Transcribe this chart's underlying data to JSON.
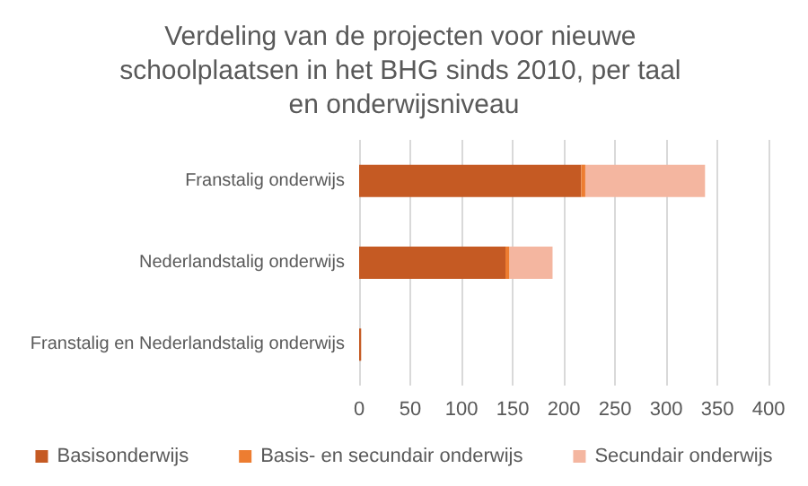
{
  "chart_data": {
    "type": "bar",
    "orientation": "horizontal",
    "stacked": true,
    "title": "Verdeling van de projecten voor nieuwe schoolplaatsen in het BHG sinds 2010, per taal en onderwijsniveau",
    "categories": [
      "Franstalig onderwijs",
      "Nederlandstalig onderwijs",
      "Franstalig en Nederlandstalig onderwijs"
    ],
    "series": [
      {
        "name": "Basisonderwijs",
        "color": "#c55a23",
        "values": [
          217,
          143,
          2
        ]
      },
      {
        "name": "Basis- en secundair onderwijs",
        "color": "#ed7d31",
        "values": [
          4,
          4,
          0
        ]
      },
      {
        "name": "Secundair onderwijs",
        "color": "#f4b6a0",
        "values": [
          117,
          42,
          0
        ]
      }
    ],
    "xlim": [
      0,
      400
    ],
    "xticks": [
      0,
      50,
      100,
      150,
      200,
      250,
      300,
      350,
      400
    ],
    "grid": "x",
    "legend": "bottom"
  }
}
